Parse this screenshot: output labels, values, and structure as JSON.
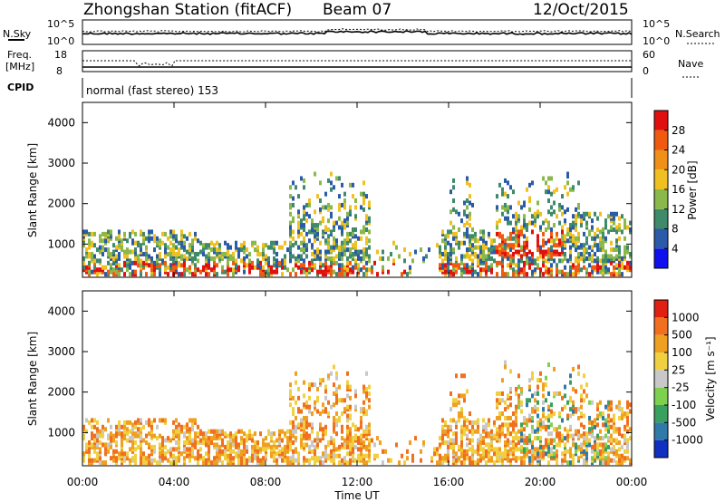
{
  "header": {
    "title": "Zhongshan Station (fitACF)",
    "beam": "Beam 07",
    "date": "12/Oct/2015"
  },
  "top_panels": {
    "nsky_label": "N.Sky",
    "nsky_ticks": [
      "10^5",
      "10^0"
    ],
    "nsearch_label": "N.Search",
    "nsearch_ticks": [
      "10^5",
      "10^0"
    ],
    "freq_label": "Freq.",
    "freq_unit": "[MHz]",
    "freq_ticks": [
      "18",
      "8"
    ],
    "nave_label": "Nave",
    "nave_ticks": [
      "60",
      "0"
    ],
    "cpid_label": "CPID",
    "cpid_text": "normal (fast stereo) 153"
  },
  "chart_data": [
    {
      "type": "heatmap",
      "name": "power",
      "ylabel": "Slant Range [km]",
      "yticks": [
        "4000",
        "3000",
        "2000",
        "1000"
      ],
      "ylim": [
        180,
        4500
      ],
      "colorbar_label": "Power [dB]",
      "colorbar_ticks": [
        "28",
        "24",
        "20",
        "16",
        "12",
        "8",
        "4"
      ],
      "colors": [
        "#1010ee",
        "#2a5aa8",
        "#3f8a6a",
        "#8ab84a",
        "#f0c020",
        "#f09018",
        "#f05a10",
        "#e01010"
      ]
    },
    {
      "type": "heatmap",
      "name": "velocity",
      "ylabel": "Slant Range [km]",
      "yticks": [
        "4000",
        "3000",
        "2000",
        "1000"
      ],
      "ylim": [
        180,
        4500
      ],
      "colorbar_label": "Velocity [m s⁻¹]",
      "colorbar_ticks": [
        "1000",
        "500",
        "100",
        "25",
        "-25",
        "-100",
        "-500",
        "-1000"
      ],
      "colors": [
        "#1030c0",
        "#2f7aa8",
        "#3aa060",
        "#7ed050",
        "#c8c8c8",
        "#f0d040",
        "#f0a020",
        "#f07020",
        "#e02010"
      ]
    }
  ],
  "xaxis": {
    "ticks": [
      "00:00",
      "04:00",
      "08:00",
      "12:00",
      "16:00",
      "20:00",
      "00:00"
    ],
    "label": "Time UT"
  }
}
